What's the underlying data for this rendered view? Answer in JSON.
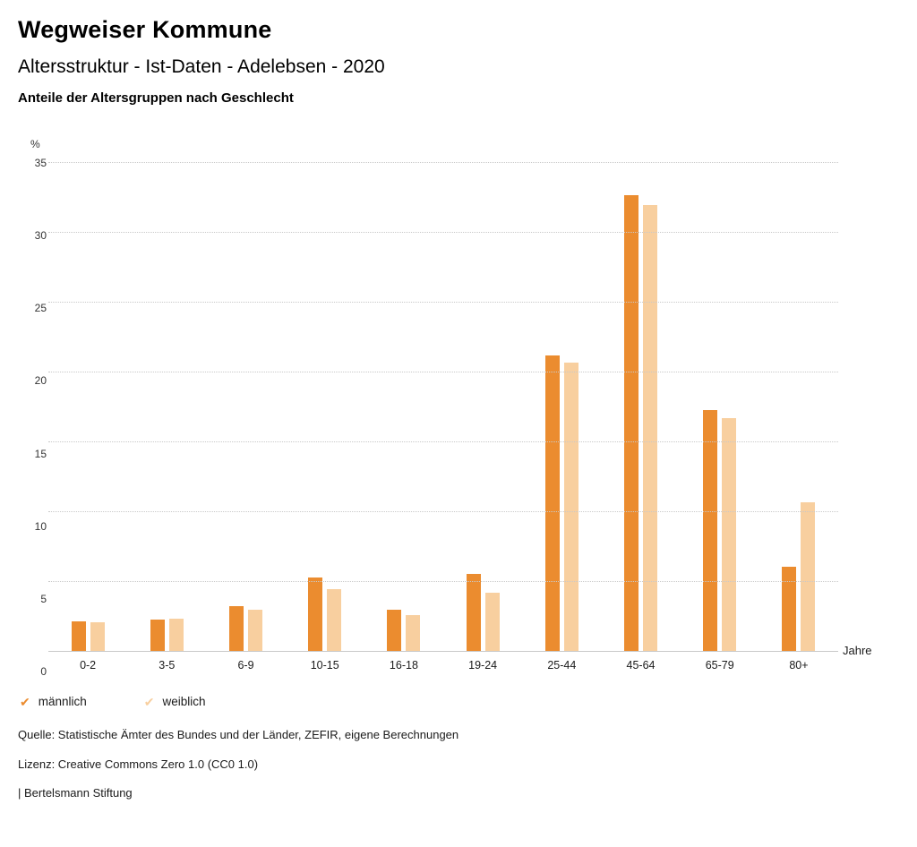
{
  "header": {
    "title": "Wegweiser Kommune",
    "subtitle": "Altersstruktur - Ist-Daten - Adelebsen - 2020",
    "chart_heading": "Anteile der Altersgruppen nach Geschlecht"
  },
  "chart_data": {
    "type": "bar",
    "categories": [
      "0-2",
      "3-5",
      "6-9",
      "10-15",
      "16-18",
      "19-24",
      "25-44",
      "45-64",
      "65-79",
      "80+"
    ],
    "series": [
      {
        "name": "männlich",
        "color": "#EB8C2F",
        "values": [
          2.2,
          2.3,
          3.3,
          5.3,
          3.0,
          5.6,
          21.2,
          32.7,
          17.3,
          6.1
        ]
      },
      {
        "name": "weiblich",
        "color": "#F8CF9F",
        "values": [
          2.1,
          2.4,
          3.0,
          4.5,
          2.6,
          4.2,
          20.7,
          32.0,
          16.7,
          10.7
        ]
      }
    ],
    "title": "Anteile der Altersgruppen nach Geschlecht",
    "ylabel": "%",
    "xlabel": "Jahre",
    "ylim": [
      0,
      35
    ],
    "yticks": [
      0,
      5,
      10,
      15,
      20,
      25,
      30,
      35
    ],
    "grid": true,
    "legend_position": "bottom-left"
  },
  "legend": {
    "check_icon": "✔"
  },
  "footer": {
    "source": "Quelle: Statistische Ämter des Bundes und der Länder, ZEFIR, eigene Berechnungen",
    "license": "Lizenz: Creative Commons Zero 1.0 (CC0 1.0)",
    "attribution": "| Bertelsmann Stiftung"
  }
}
